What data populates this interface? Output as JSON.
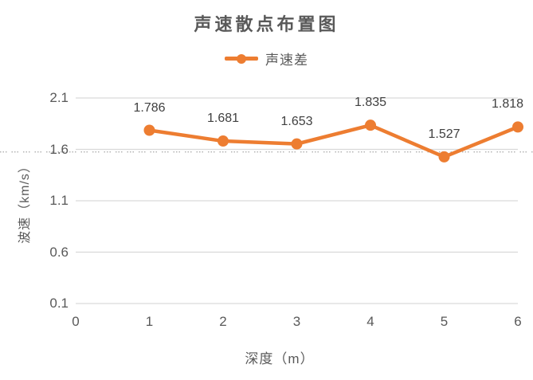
{
  "colors": {
    "series": "#ED7D31",
    "gridline": "#D9D9D9",
    "reference_line": "#A6A6A6",
    "title_text": "#595959",
    "tick_text": "#595959",
    "data_label_text": "#404040",
    "background": "#FFFFFF"
  },
  "chart_data": {
    "type": "line",
    "title": "声速散点布置图",
    "xlabel": "深度（m）",
    "ylabel": "波速（km/s）",
    "legend_position": "top",
    "series": [
      {
        "name": "声速差",
        "color": "#ED7D31",
        "marker": "circle",
        "x": [
          1,
          2,
          3,
          4,
          5,
          6
        ],
        "values": [
          1.786,
          1.681,
          1.653,
          1.835,
          1.527,
          1.818
        ],
        "data_labels": [
          "1.786",
          "1.681",
          "1.653",
          "1.835",
          "1.527",
          "1.818"
        ]
      }
    ],
    "xlim": [
      0,
      6
    ],
    "ylim": [
      0.1,
      2.1
    ],
    "xticks": [
      "0",
      "1",
      "2",
      "3",
      "4",
      "5",
      "6"
    ],
    "yticks": [
      "2.1",
      "1.6",
      "1.1",
      "0.6",
      "0.1"
    ],
    "grid": "horizontal solid gridlines at each y tick",
    "reference_line": {
      "value": 1.575,
      "style": "dotted",
      "full_width": true
    }
  }
}
